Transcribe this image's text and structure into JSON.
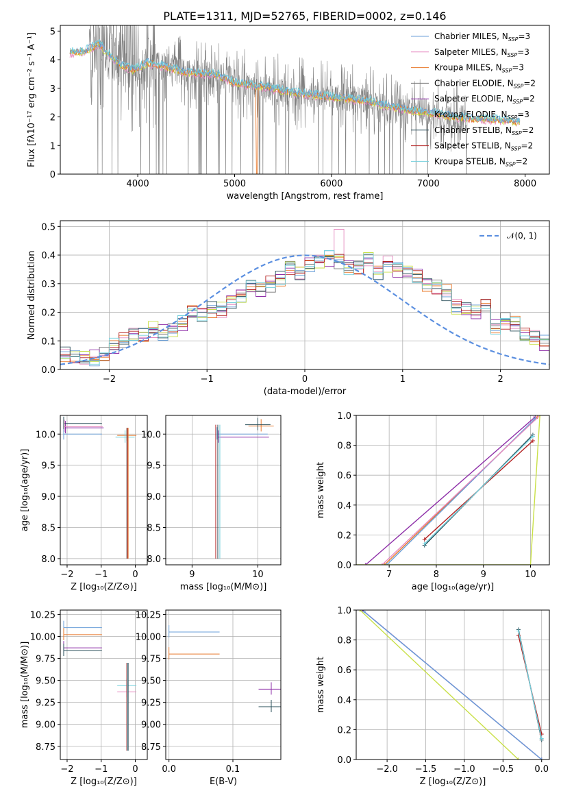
{
  "colors": {
    "chabrier_miles": "#6a9fd8",
    "salpeter_miles": "#e58ac0",
    "kroupa_miles": "#e8782a",
    "chabrier_elodie": "#707070",
    "salpeter_elodie": "#8e2fa8",
    "kroupa_elodie": "#c9e048",
    "chabrier_stelib": "#2a4f5a",
    "salpeter_stelib": "#b21f1f",
    "kroupa_stelib": "#72cfdc",
    "data": "#808080",
    "normal": "#5b8fe0"
  },
  "chart_data": [
    {
      "id": "spectrum",
      "type": "line",
      "title": "PLATE=1311, MJD=52765, FIBERID=0002, z=0.146",
      "xlabel": "wavelength [Angstrom, rest frame]",
      "ylabel": "Flux [fλ10⁻¹⁷ erg cm⁻² s⁻¹ A⁻¹]",
      "xlim": [
        3200,
        8250
      ],
      "ylim": [
        0,
        5.2
      ],
      "xticks": [
        4000,
        5000,
        6000,
        7000,
        8000
      ],
      "yticks": [
        0,
        1,
        2,
        3,
        4,
        5
      ],
      "legend_position": "upper-right",
      "legend": [
        {
          "label": "Chabrier MILES, N",
          "sub": "SSP",
          "eq": "=3",
          "color_key": "chabrier_miles"
        },
        {
          "label": "Salpeter MILES, N",
          "sub": "SSP",
          "eq": "=3",
          "color_key": "salpeter_miles"
        },
        {
          "label": "Kroupa MILES, N",
          "sub": "SSP",
          "eq": "=3",
          "color_key": "kroupa_miles"
        },
        {
          "label": "Chabrier ELODIE, N",
          "sub": "SSP",
          "eq": "=2",
          "color_key": "chabrier_elodie"
        },
        {
          "label": "Salpeter ELODIE, N",
          "sub": "SSP",
          "eq": "=2",
          "color_key": "salpeter_elodie"
        },
        {
          "label": "Kroupa ELODIE, N",
          "sub": "SSP",
          "eq": "=3",
          "color_key": "kroupa_elodie"
        },
        {
          "label": "Chabrier STELIB, N",
          "sub": "SSP",
          "eq": "=2",
          "color_key": "chabrier_stelib"
        },
        {
          "label": "Salpeter STELIB, N",
          "sub": "SSP",
          "eq": "=2",
          "color_key": "salpeter_stelib"
        },
        {
          "label": "Kroupa STELIB, N",
          "sub": "SSP",
          "eq": "=2",
          "color_key": "kroupa_stelib"
        }
      ],
      "model_trend": [
        [
          3300,
          4.25
        ],
        [
          3450,
          4.3
        ],
        [
          3600,
          4.55
        ],
        [
          3700,
          4.2
        ],
        [
          3800,
          3.85
        ],
        [
          3950,
          3.65
        ],
        [
          4100,
          3.9
        ],
        [
          4300,
          3.75
        ],
        [
          4500,
          3.55
        ],
        [
          4800,
          3.5
        ],
        [
          5000,
          3.2
        ],
        [
          5300,
          3.05
        ],
        [
          5600,
          2.85
        ],
        [
          6000,
          2.7
        ],
        [
          6400,
          2.55
        ],
        [
          6550,
          2.4
        ],
        [
          6700,
          2.3
        ],
        [
          7000,
          2.15
        ],
        [
          7400,
          1.95
        ],
        [
          7700,
          1.9
        ],
        [
          7900,
          1.85
        ]
      ]
    },
    {
      "id": "residuals",
      "type": "histogram",
      "xlabel": "(data-model)/error",
      "ylabel": "Normed distribution",
      "xlim": [
        -2.5,
        2.5
      ],
      "ylim": [
        0,
        0.52
      ],
      "xticks": [
        -2,
        -1,
        0,
        1,
        2
      ],
      "yticks": [
        0.0,
        0.1,
        0.2,
        0.3,
        0.4,
        0.5
      ],
      "legend": "𝒩(0, 1)",
      "legend_position": "upper-right",
      "bin_width": 0.1,
      "bin_start": -2.5,
      "hist_base": [
        0.05,
        0.04,
        0.04,
        0.04,
        0.05,
        0.08,
        0.1,
        0.12,
        0.12,
        0.14,
        0.13,
        0.14,
        0.16,
        0.2,
        0.19,
        0.21,
        0.21,
        0.24,
        0.26,
        0.29,
        0.28,
        0.3,
        0.32,
        0.36,
        0.34,
        0.37,
        0.38,
        0.39,
        0.38,
        0.36,
        0.36,
        0.39,
        0.34,
        0.37,
        0.35,
        0.34,
        0.33,
        0.3,
        0.29,
        0.27,
        0.22,
        0.21,
        0.2,
        0.23,
        0.15,
        0.17,
        0.16,
        0.12,
        0.11,
        0.09,
        0.06,
        0.04,
        0.04,
        0.03,
        0.02
      ]
    },
    {
      "id": "age_vs_z",
      "type": "scatter",
      "xlabel": "Z [log₁₀(Z/Z⊙)]",
      "ylabel": "age  [log₁₀(age/yr)]",
      "xlim": [
        -2.2,
        0.35
      ],
      "ylim": [
        7.9,
        10.3
      ],
      "xticks": [
        -2,
        -1,
        0
      ],
      "yticks": [
        8.0,
        8.5,
        9.0,
        9.5,
        10.0
      ],
      "points": [
        [
          -2.1,
          10.0
        ],
        [
          -0.25,
          9.98
        ],
        [
          -2.05,
          10.1
        ],
        [
          -2.1,
          10.17
        ],
        [
          -0.3,
          9.95
        ],
        [
          -2.08,
          10.12
        ]
      ]
    },
    {
      "id": "age_vs_mass",
      "type": "scatter",
      "xlabel": "mass [log₁₀(M/M⊙)]",
      "xlim": [
        8.6,
        10.35
      ],
      "ylim": [
        7.9,
        10.3
      ],
      "xticks": [
        9,
        10
      ],
      "yticks": [
        8.0,
        8.5,
        9.0,
        9.5,
        10.0
      ],
      "points": [
        [
          9.38,
          10.0
        ],
        [
          10.05,
          10.13
        ],
        [
          9.4,
          9.95
        ],
        [
          10.0,
          10.15
        ]
      ]
    },
    {
      "id": "weight_vs_age",
      "type": "line",
      "xlabel": "age  [log₁₀(age/yr)]",
      "ylabel": "mass weight",
      "xlim": [
        6.3,
        10.4
      ],
      "ylim": [
        0.0,
        1.0
      ],
      "xticks": [
        7,
        8,
        9,
        10
      ],
      "yticks": [
        0.0,
        0.2,
        0.4,
        0.6,
        0.8,
        1.0
      ],
      "series": [
        {
          "color_key": "salpeter_elodie",
          "points": [
            [
              6.5,
              0.0
            ],
            [
              10.1,
              0.99
            ]
          ]
        },
        {
          "color_key": "kroupa_miles",
          "points": [
            [
              6.9,
              0.0
            ],
            [
              10.15,
              0.99
            ]
          ]
        },
        {
          "color_key": "chabrier_miles",
          "points": [
            [
              6.95,
              0.0
            ],
            [
              10.1,
              0.98
            ]
          ]
        },
        {
          "color_key": "salpeter_miles",
          "points": [
            [
              6.85,
              0.0
            ],
            [
              10.2,
              1.0
            ]
          ]
        },
        {
          "color_key": "kroupa_elodie",
          "points": [
            [
              6.3,
              0.0
            ],
            [
              10.0,
              0.0
            ],
            [
              10.2,
              1.0
            ]
          ]
        },
        {
          "color_key": "chabrier_stelib",
          "points": [
            [
              7.75,
              0.13
            ],
            [
              10.05,
              0.87
            ]
          ]
        },
        {
          "color_key": "salpeter_stelib",
          "points": [
            [
              7.75,
              0.17
            ],
            [
              10.05,
              0.83
            ]
          ]
        },
        {
          "color_key": "kroupa_stelib",
          "points": [
            [
              7.75,
              0.14
            ],
            [
              10.05,
              0.86
            ]
          ]
        }
      ]
    },
    {
      "id": "mass_vs_z",
      "type": "scatter",
      "xlabel": "Z [log₁₀(Z/Z⊙)]",
      "ylabel": "mass [log₁₀(M/M⊙)]",
      "xlim": [
        -2.2,
        0.35
      ],
      "ylim": [
        8.6,
        10.3
      ],
      "xticks": [
        -2,
        -1,
        0
      ],
      "yticks": [
        8.75,
        9.0,
        9.25,
        9.5,
        9.75,
        10.0,
        10.25
      ],
      "points": [
        [
          -2.1,
          10.1
        ],
        [
          -2.1,
          10.02
        ],
        [
          -2.1,
          9.87
        ],
        [
          -2.1,
          9.84
        ],
        [
          -0.25,
          9.44
        ],
        [
          -0.25,
          9.37
        ]
      ]
    },
    {
      "id": "mass_vs_ebv",
      "type": "scatter",
      "xlabel": "E(B-V)",
      "xlim": [
        -0.005,
        0.175
      ],
      "ylim": [
        8.6,
        10.3
      ],
      "xticks": [
        0.0,
        0.1
      ],
      "yticks": [
        8.75,
        9.0,
        9.25,
        9.5,
        9.75,
        10.0,
        10.25
      ],
      "points": [
        [
          0.0,
          10.05
        ],
        [
          0.0,
          9.8
        ],
        [
          0.16,
          9.4
        ],
        [
          0.16,
          9.2
        ]
      ]
    },
    {
      "id": "weight_vs_z",
      "type": "line",
      "xlabel": "Z [log₁₀(Z/Z⊙)]",
      "ylabel": "mass weight",
      "xlim": [
        -2.4,
        0.1
      ],
      "ylim": [
        0.0,
        1.0
      ],
      "xticks": [
        -2.0,
        -1.5,
        -1.0,
        -0.5,
        0.0
      ],
      "yticks": [
        0.0,
        0.2,
        0.4,
        0.6,
        0.8,
        1.0
      ],
      "series": [
        {
          "color_key": "salpeter_elodie",
          "points": [
            [
              -2.32,
              1.0
            ],
            [
              0.0,
              0.0
            ]
          ]
        },
        {
          "color_key": "chabrier_miles",
          "points": [
            [
              -2.3,
              0.99
            ],
            [
              0.0,
              0.0
            ]
          ]
        },
        {
          "color_key": "kroupa_elodie",
          "points": [
            [
              -2.35,
              1.0
            ],
            [
              -0.3,
              0.0
            ]
          ]
        },
        {
          "color_key": "chabrier_stelib",
          "points": [
            [
              -0.3,
              0.87
            ],
            [
              0.0,
              0.13
            ]
          ]
        },
        {
          "color_key": "salpeter_stelib",
          "points": [
            [
              -0.3,
              0.83
            ],
            [
              0.0,
              0.17
            ]
          ]
        },
        {
          "color_key": "kroupa_stelib",
          "points": [
            [
              -0.3,
              0.86
            ],
            [
              0.0,
              0.14
            ]
          ]
        }
      ]
    }
  ]
}
